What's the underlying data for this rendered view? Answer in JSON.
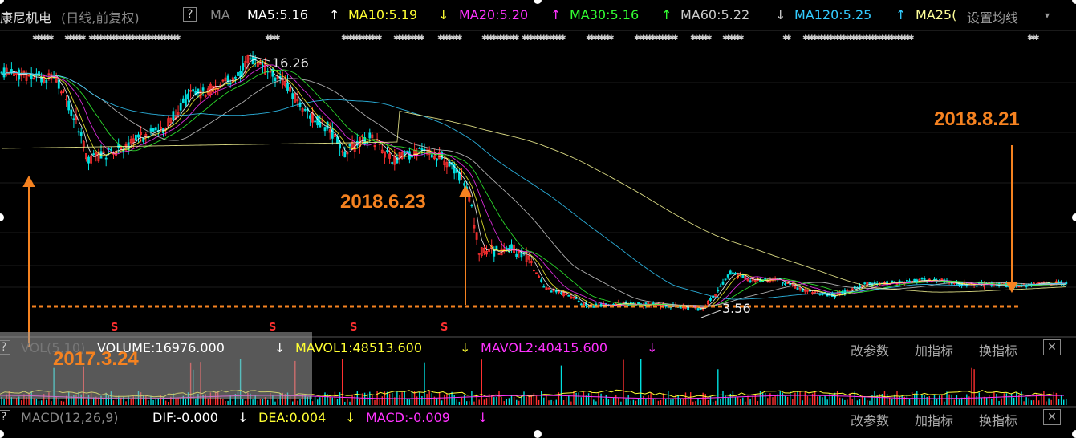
{
  "header": {
    "stock_name": "康尼机电",
    "period_info": "(日线,前复权)",
    "question": "?",
    "ma_label": "MA",
    "ma5": "MA5:5.16",
    "ma5_arrow": "↑",
    "ma10": "MA10:5.19",
    "ma10_arrow": "↓",
    "ma20": "MA20:5.20",
    "ma20_arrow": "↑",
    "ma30": "MA30:5.16",
    "ma30_arrow": "↑",
    "ma60": "MA60:5.22",
    "ma60_arrow": "↓",
    "ma120": "MA120:5.25",
    "ma120_arrow": "↑",
    "ma250": "MA25(",
    "settings": "设置均线",
    "dropdown": "▾"
  },
  "price_panel": {
    "high_label": "16.26",
    "low_label": "3.56",
    "s_marker": "S"
  },
  "annotations": {
    "a1": "2017.3.24",
    "a2": "2018.6.23",
    "a3": "2018.8.21"
  },
  "volume_panel": {
    "question": "?",
    "label": "VOL(5,10)",
    "volume": "VOLUME:16976.000",
    "volume_arrow": "↓",
    "mavol1": "MAVOL1:48513.600",
    "mavol1_arrow": "↓",
    "mavol2": "MAVOL2:40415.600",
    "mavol2_arrow": "↓",
    "btn_params": "改参数",
    "btn_add": "加指标",
    "btn_switch": "换指标",
    "close": "✕"
  },
  "macd_panel": {
    "question": "?",
    "label": "MACD(12,26,9)",
    "dif": "DIF:-0.000",
    "dif_arrow": "↓",
    "dea": "DEA:0.004",
    "dea_arrow": "↓",
    "macd": "MACD:-0.009",
    "macd_arrow": "↓",
    "btn_params": "改参数",
    "btn_add": "加指标",
    "btn_switch": "换指标",
    "close": "✕"
  },
  "colors": {
    "up": "#ff3030",
    "down": "#00e0e0",
    "ma5": "#ffffff",
    "ma10": "#ffff33",
    "ma20": "#ff33ff",
    "ma30": "#33ff33",
    "ma60": "#cccccc",
    "ma120": "#33ccff",
    "ma250": "#ffff99",
    "annotation": "#f58220"
  },
  "chart_data": {
    "type": "line",
    "key_points": [
      {
        "label": "2017.3.24",
        "y": null
      },
      {
        "label": "high",
        "y": 16.26
      },
      {
        "label": "2018.6.23",
        "y": null
      },
      {
        "label": "low",
        "y": 3.56
      },
      {
        "label": "2018.8.21",
        "y": null
      }
    ],
    "ma_values": {
      "MA5": 5.16,
      "MA10": 5.19,
      "MA20": 5.2,
      "MA30": 5.16,
      "MA60": 5.22,
      "MA120": 5.25
    },
    "volume": {
      "VOLUME": 16976.0,
      "MAVOL1": 48513.6,
      "MAVOL2": 40415.6
    },
    "macd": {
      "DIF": -0.0,
      "DEA": 0.004,
      "MACD": -0.009
    }
  }
}
